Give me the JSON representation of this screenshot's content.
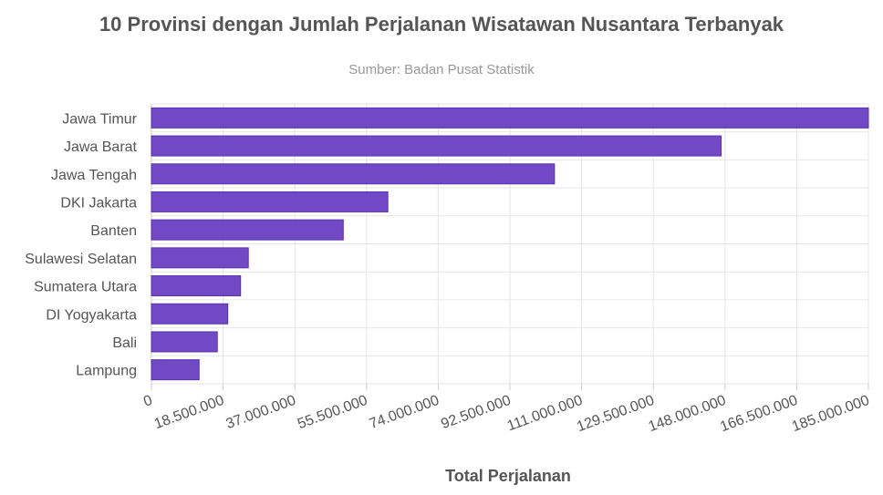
{
  "chart_data": {
    "type": "bar",
    "orientation": "horizontal",
    "title": "10 Provinsi dengan Jumlah Perjalanan Wisatawan Nusantara Terbanyak",
    "subtitle": "Sumber: Badan Pusat Statistik",
    "xlabel": "Total Perjalanan",
    "ylabel": "",
    "categories": [
      "Jawa Timur",
      "Jawa Barat",
      "Jawa Tengah",
      "DKI Jakarta",
      "Banten",
      "Sulawesi Selatan",
      "Sumatera Utara",
      "DI Yogyakarta",
      "Bali",
      "Lampung"
    ],
    "values": [
      185000000,
      147000000,
      104000000,
      61000000,
      49500000,
      25000000,
      23000000,
      19700000,
      17000000,
      12300000
    ],
    "xlim": [
      0,
      185000000
    ],
    "xticks": [
      0,
      18500000,
      37000000,
      55500000,
      74000000,
      92500000,
      111000000,
      129500000,
      148000000,
      166500000,
      185000000
    ],
    "xtick_labels": [
      "0",
      "18.500.000",
      "37.000.000",
      "55.500.000",
      "74.000.000",
      "92.500.000",
      "111.000.000",
      "129.500.000",
      "148.000.000",
      "166.500.000",
      "185.000.000"
    ],
    "grid": true,
    "bar_color": "#6a3fc2"
  }
}
